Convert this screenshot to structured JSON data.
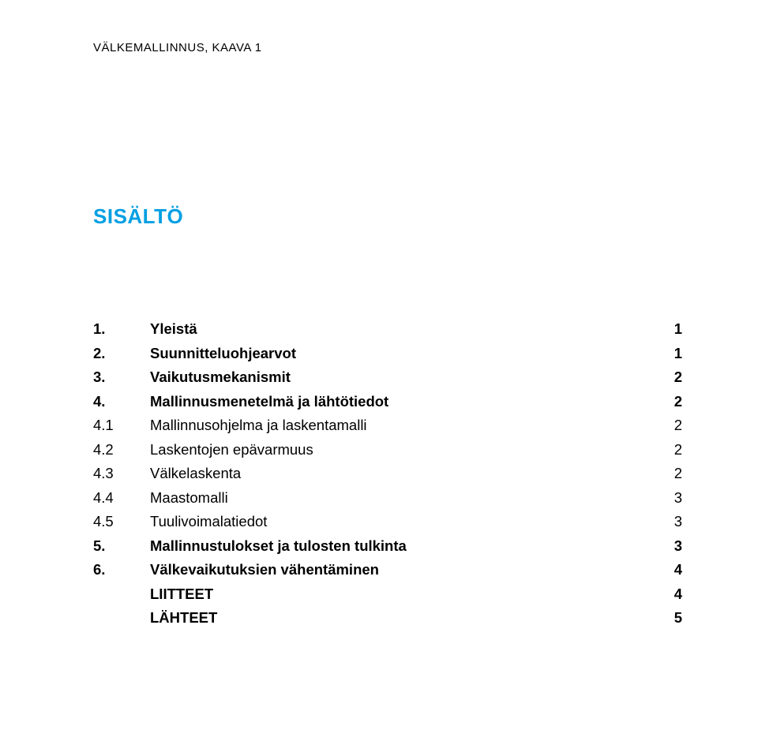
{
  "colors": {
    "accent": "#009fe3",
    "text": "#000000",
    "background": "#ffffff"
  },
  "typography": {
    "family": "Verdana, Geneva, sans-serif",
    "running_head_size_pt": 11,
    "title_size_pt": 20,
    "toc_size_pt": 14
  },
  "running_head": "VÄLKEMALLINNUS, KAAVA 1",
  "title": "SISÄLTÖ",
  "toc": [
    {
      "num": "1.",
      "label": "Yleistä",
      "page": "1",
      "bold": true
    },
    {
      "num": "2.",
      "label": "Suunnitteluohjearvot",
      "page": "1",
      "bold": true
    },
    {
      "num": "3.",
      "label": "Vaikutusmekanismit",
      "page": "2",
      "bold": true
    },
    {
      "num": "4.",
      "label": "Mallinnusmenetelmä ja lähtötiedot",
      "page": "2",
      "bold": true
    },
    {
      "num": "4.1",
      "label": "Mallinnusohjelma ja laskentamalli",
      "page": "2",
      "bold": false
    },
    {
      "num": "4.2",
      "label": "Laskentojen epävarmuus",
      "page": "2",
      "bold": false
    },
    {
      "num": "4.3",
      "label": "Välkelaskenta",
      "page": "2",
      "bold": false
    },
    {
      "num": "4.4",
      "label": "Maastomalli",
      "page": "3",
      "bold": false
    },
    {
      "num": "4.5",
      "label": "Tuulivoimalatiedot",
      "page": "3",
      "bold": false
    },
    {
      "num": "5.",
      "label": "Mallinnustulokset ja tulosten tulkinta",
      "page": "3",
      "bold": true
    },
    {
      "num": "6.",
      "label": "Välkevaikutuksien vähentäminen",
      "page": "4",
      "bold": true
    },
    {
      "num": "",
      "label": "LIITTEET",
      "page": "4",
      "bold": true
    },
    {
      "num": "",
      "label": "LÄHTEET",
      "page": "5",
      "bold": true
    }
  ]
}
